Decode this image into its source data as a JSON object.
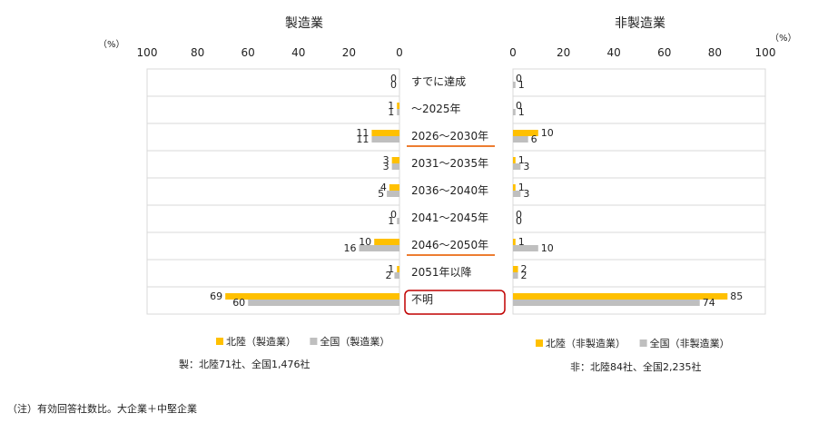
{
  "chart_data": [
    {
      "type": "bar",
      "orientation": "horizontal",
      "title": "製造業",
      "unit_label": "（%）",
      "xlim": [
        100,
        0
      ],
      "ticks": [
        "100",
        "80",
        "60",
        "40",
        "20",
        "0"
      ],
      "categories": [
        "すでに達成",
        "～2025年",
        "2026～2030年",
        "2031～2035年",
        "2036～2040年",
        "2041～2045年",
        "2046～2050年",
        "2051年以降",
        "不明"
      ],
      "series": [
        {
          "name": "北陸（製造業）",
          "color": "#FFC000",
          "values": [
            0,
            1,
            11,
            3,
            4,
            0,
            10,
            1,
            69
          ]
        },
        {
          "name": "全国（製造業）",
          "color": "#BFBFBF",
          "values": [
            0,
            1,
            11,
            3,
            5,
            1,
            16,
            2,
            60
          ]
        }
      ],
      "sample_note": "製：北陸71社、全国1,476社"
    },
    {
      "type": "bar",
      "orientation": "horizontal",
      "title": "非製造業",
      "unit_label": "（%）",
      "xlim": [
        0,
        100
      ],
      "ticks": [
        "0",
        "20",
        "40",
        "60",
        "80",
        "100"
      ],
      "categories": [
        "すでに達成",
        "～2025年",
        "2026～2030年",
        "2031～2035年",
        "2036～2040年",
        "2041～2045年",
        "2046～2050年",
        "2051年以降",
        "不明"
      ],
      "series": [
        {
          "name": "北陸（非製造業）",
          "color": "#FFC000",
          "values": [
            0,
            0,
            10,
            1,
            1,
            0,
            1,
            2,
            85
          ]
        },
        {
          "name": "全国（非製造業）",
          "color": "#BFBFBF",
          "values": [
            1,
            1,
            6,
            3,
            3,
            0,
            10,
            2,
            74
          ]
        }
      ],
      "sample_note": "非：北陸84社、全国2,235社"
    }
  ],
  "highlights": {
    "underlined_categories": [
      2,
      6
    ],
    "boxed_categories": [
      8
    ],
    "underline_color": "#ED7D31",
    "box_color": "#C00000"
  },
  "footnote": "（注）有効回答社数比。大企業＋中堅企業"
}
